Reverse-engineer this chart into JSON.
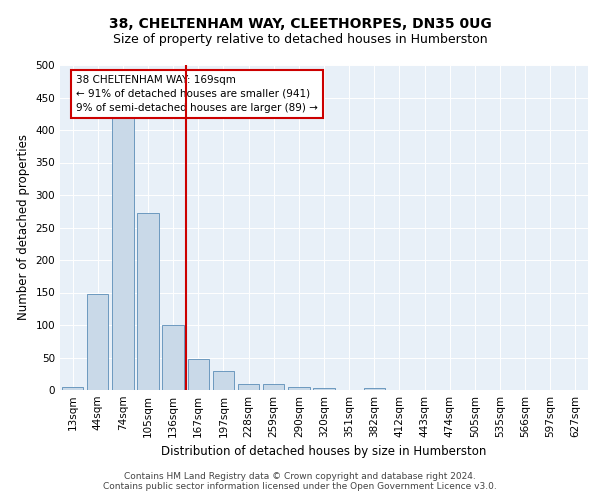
{
  "title1": "38, CHELTENHAM WAY, CLEETHORPES, DN35 0UG",
  "title2": "Size of property relative to detached houses in Humberston",
  "xlabel": "Distribution of detached houses by size in Humberston",
  "ylabel": "Number of detached properties",
  "footer1": "Contains HM Land Registry data © Crown copyright and database right 2024.",
  "footer2": "Contains public sector information licensed under the Open Government Licence v3.0.",
  "annotation_line1": "38 CHELTENHAM WAY: 169sqm",
  "annotation_line2": "← 91% of detached houses are smaller (941)",
  "annotation_line3": "9% of semi-detached houses are larger (89) →",
  "bar_color": "#c9d9e8",
  "bar_edge_color": "#5b8db8",
  "vline_color": "#cc0000",
  "annotation_box_color": "#cc0000",
  "bg_color": "#e8f0f8",
  "categories": [
    "13sqm",
    "44sqm",
    "74sqm",
    "105sqm",
    "136sqm",
    "167sqm",
    "197sqm",
    "228sqm",
    "259sqm",
    "290sqm",
    "320sqm",
    "351sqm",
    "382sqm",
    "412sqm",
    "443sqm",
    "474sqm",
    "505sqm",
    "535sqm",
    "566sqm",
    "597sqm",
    "627sqm"
  ],
  "values": [
    5,
    148,
    430,
    272,
    100,
    48,
    30,
    10,
    10,
    5,
    3,
    0,
    3,
    0,
    0,
    0,
    0,
    0,
    0,
    0,
    0
  ],
  "ylim": [
    0,
    500
  ],
  "yticks": [
    0,
    50,
    100,
    150,
    200,
    250,
    300,
    350,
    400,
    450,
    500
  ],
  "vline_x": 4.5,
  "title1_fontsize": 10,
  "title2_fontsize": 9,
  "xlabel_fontsize": 8.5,
  "ylabel_fontsize": 8.5,
  "tick_fontsize": 7.5,
  "footer_fontsize": 6.5,
  "annotation_fontsize": 7.5
}
